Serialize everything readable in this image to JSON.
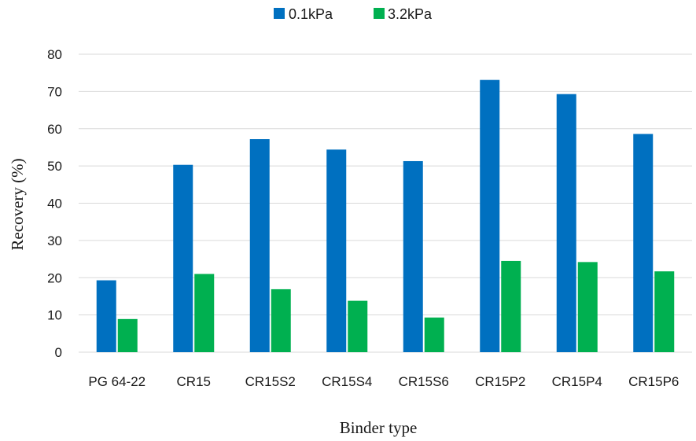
{
  "chart_data": {
    "type": "bar",
    "title": "",
    "xlabel": "Binder type",
    "ylabel": "Recovery (%)",
    "ylim": [
      0,
      80
    ],
    "yticks": [
      0,
      10,
      20,
      30,
      40,
      50,
      60,
      70,
      80
    ],
    "grid": true,
    "legend_position": "top",
    "categories": [
      "PG 64-22",
      "CR15",
      "CR15S2",
      "CR15S4",
      "CR15S6",
      "CR15P2",
      "CR15P4",
      "CR15P6"
    ],
    "series": [
      {
        "name": "0.1kPa",
        "color": "#0070C0",
        "values": [
          19.3,
          50.3,
          57.2,
          54.4,
          51.3,
          73.1,
          69.3,
          58.6
        ]
      },
      {
        "name": "3.2kPa",
        "color": "#00B050",
        "values": [
          8.9,
          21.0,
          16.9,
          13.8,
          9.3,
          24.5,
          24.2,
          21.7
        ]
      }
    ]
  }
}
